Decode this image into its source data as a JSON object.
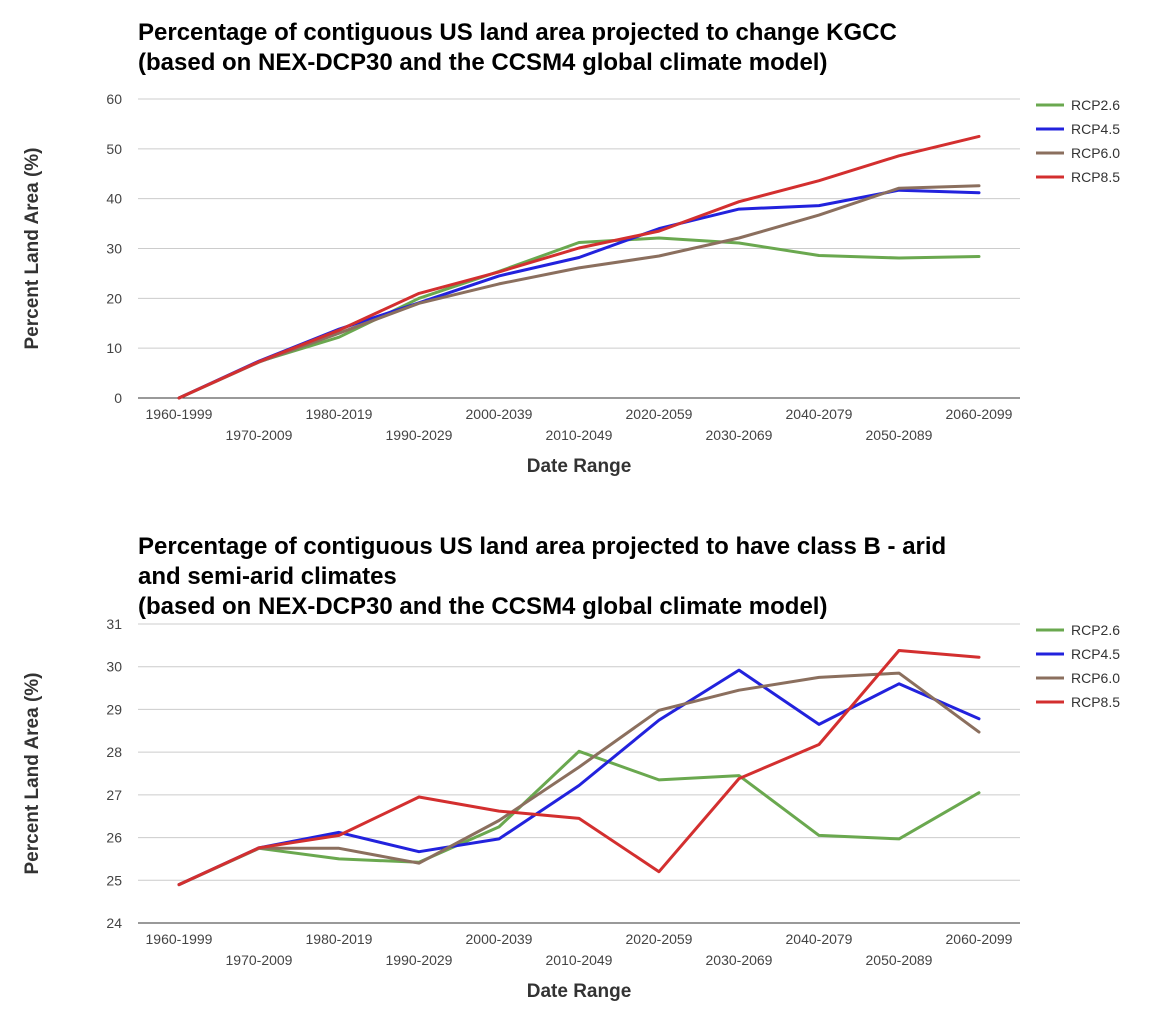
{
  "chart_data": [
    {
      "type": "line",
      "title_lines": [
        "Percentage of contiguous US land area projected to change KGCC",
        "(based on NEX-DCP30 and the CCSM4 global climate model)"
      ],
      "xlabel": "Date Range",
      "ylabel": "Percent Land Area (%)",
      "ylim": [
        0,
        60
      ],
      "yticks": [
        "0",
        "10",
        "20",
        "30",
        "40",
        "50",
        "60"
      ],
      "grid": true,
      "legend_position": "right",
      "categories": [
        "1960-1999",
        "1970-2009",
        "1980-2019",
        "1990-2029",
        "2000-2039",
        "2010-2049",
        "2020-2059",
        "2030-2069",
        "2040-2079",
        "2050-2089",
        "2060-2099"
      ],
      "series": [
        {
          "name": "RCP2.6",
          "color": "#6aa84f",
          "values": [
            0,
            7.3,
            12.2,
            20,
            25.4,
            31.2,
            32.1,
            31.1,
            28.6,
            28.1,
            28.4
          ]
        },
        {
          "name": "RCP4.5",
          "color": "#2222dd",
          "values": [
            0,
            7.4,
            13.8,
            19.1,
            24.5,
            28.2,
            34.0,
            37.9,
            38.6,
            41.7,
            41.2
          ]
        },
        {
          "name": "RCP6.0",
          "color": "#8b6f5e",
          "values": [
            0,
            7.2,
            13.0,
            19.0,
            22.9,
            26.1,
            28.5,
            32.1,
            36.7,
            42.1,
            42.6
          ]
        },
        {
          "name": "RCP8.5",
          "color": "#d32f2f",
          "values": [
            0,
            7.3,
            13.6,
            21.0,
            25.3,
            30.1,
            33.5,
            39.4,
            43.6,
            48.6,
            52.5
          ]
        }
      ]
    },
    {
      "type": "line",
      "title_lines": [
        "Percentage of contiguous US land area projected to have class B - arid",
        "and semi-arid climates",
        "(based on NEX-DCP30 and the CCSM4 global climate model)"
      ],
      "xlabel": "Date Range",
      "ylabel": "Percent Land Area (%)",
      "ylim": [
        24,
        31
      ],
      "yticks": [
        "24",
        "25",
        "26",
        "27",
        "28",
        "29",
        "30",
        "31"
      ],
      "grid": true,
      "legend_position": "right",
      "categories": [
        "1960-1999",
        "1970-2009",
        "1980-2019",
        "1990-2029",
        "2000-2039",
        "2010-2049",
        "2020-2059",
        "2030-2069",
        "2040-2079",
        "2050-2089",
        "2060-2099"
      ],
      "series": [
        {
          "name": "RCP2.6",
          "color": "#6aa84f",
          "values": [
            24.9,
            25.75,
            25.5,
            25.42,
            26.25,
            28.02,
            27.35,
            27.45,
            26.05,
            25.97,
            27.05
          ]
        },
        {
          "name": "RCP4.5",
          "color": "#2222dd",
          "values": [
            24.9,
            25.76,
            26.12,
            25.67,
            25.97,
            27.22,
            28.75,
            29.92,
            28.65,
            29.6,
            28.78
          ]
        },
        {
          "name": "RCP6.0",
          "color": "#8b6f5e",
          "values": [
            24.9,
            25.75,
            25.75,
            25.4,
            26.4,
            27.65,
            28.98,
            29.45,
            29.75,
            29.85,
            28.47
          ]
        },
        {
          "name": "RCP8.5",
          "color": "#d32f2f",
          "values": [
            24.9,
            25.76,
            26.05,
            26.95,
            26.62,
            26.45,
            25.2,
            27.38,
            28.18,
            30.38,
            30.22
          ]
        }
      ]
    }
  ]
}
